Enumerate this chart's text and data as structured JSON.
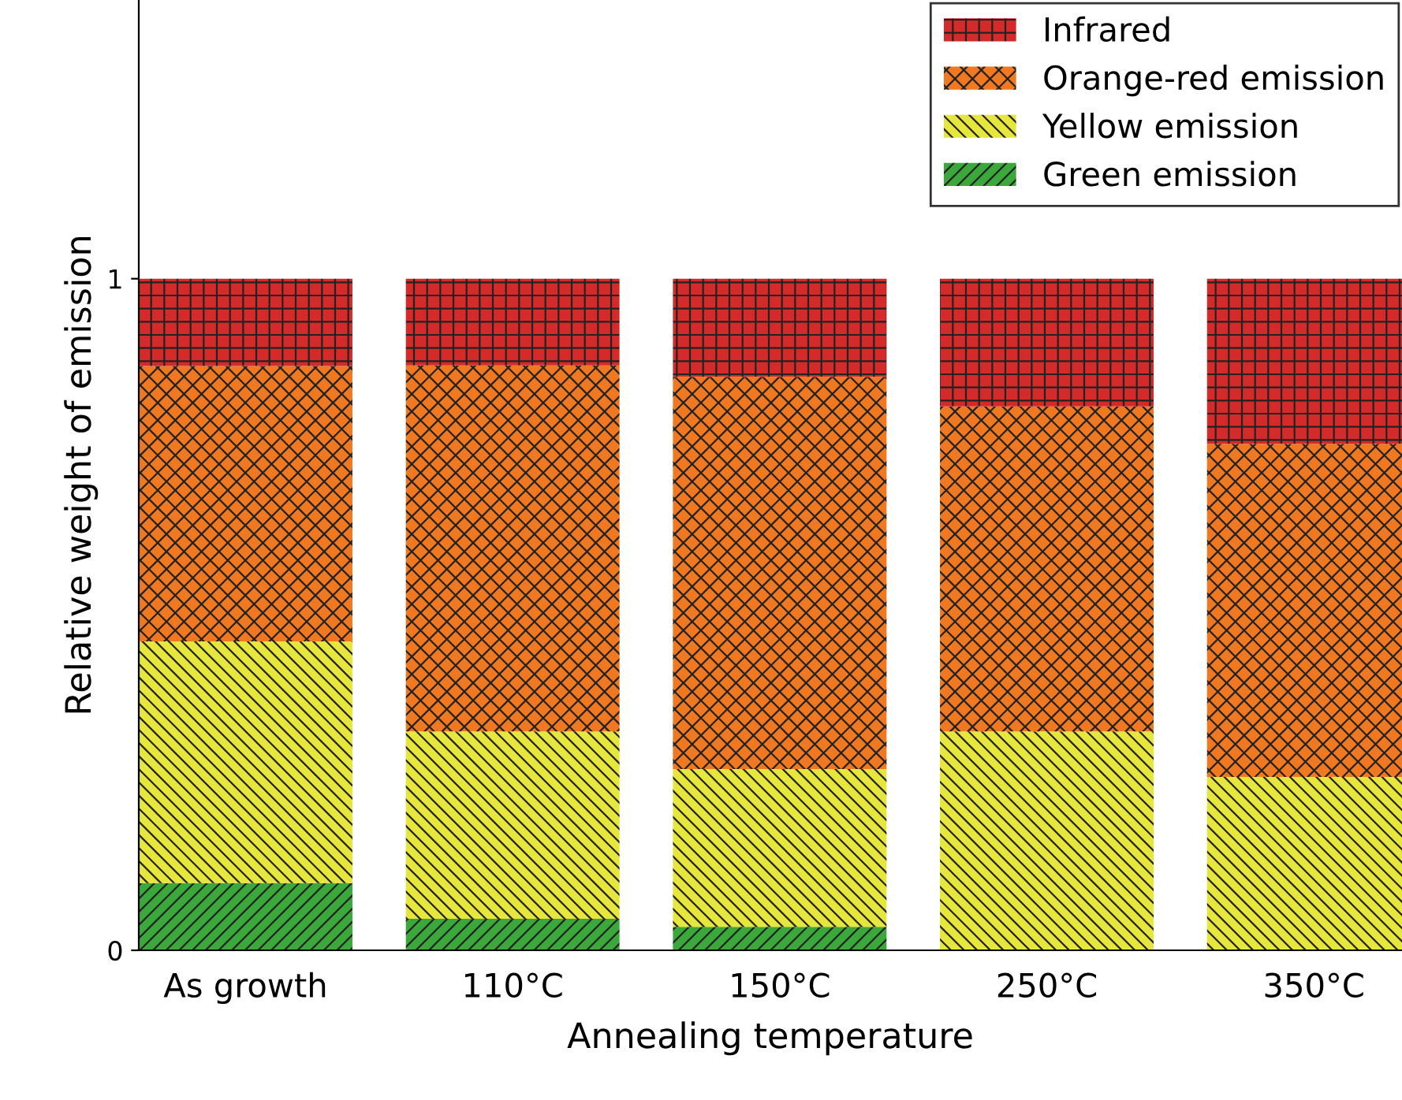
{
  "chart_data": {
    "type": "bar",
    "stacked": true,
    "xlabel": "Annealing temperature",
    "ylabel": "Relative weight of emission",
    "categories": [
      "As growth",
      "110°C",
      "150°C",
      "250°C",
      "350°C"
    ],
    "series": [
      {
        "name": "Green emission",
        "color": "#3aa83a",
        "values": [
          0.1,
          0.047,
          0.035,
          0,
          0
        ]
      },
      {
        "name": "Yellow emission",
        "color": "#e6e63c",
        "values": [
          0.36,
          0.279,
          0.235,
          0.326,
          0.258
        ]
      },
      {
        "name": "Orange-red emission",
        "color": "#f07820",
        "values": [
          0.41,
          0.545,
          0.584,
          0.484,
          0.496
        ]
      },
      {
        "name": "Infrared",
        "color": "#d42a2a",
        "values": [
          0.13,
          0.129,
          0.146,
          0.19,
          0.246
        ]
      }
    ],
    "ylim": [
      0,
      1.415
    ],
    "yticks": [
      0,
      1
    ],
    "grid": false,
    "legend": "top right"
  }
}
